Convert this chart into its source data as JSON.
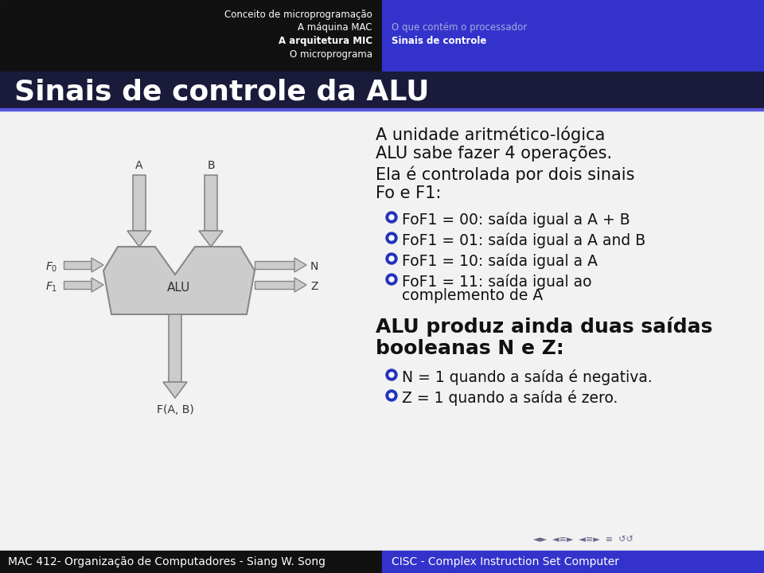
{
  "header_bg_left": "#111111",
  "header_bg_right": "#3333cc",
  "title_bar_bg": "#1a1a3a",
  "slide_bg": "#f2f2f2",
  "footer_bg_left": "#111111",
  "footer_bg_right": "#3333cc",
  "nav_items": [
    "Conceito de microprogramação",
    "A máquina MAC",
    "A arquitetura MIC",
    "O microprograma"
  ],
  "nav_bold": "A arquitetura MIC",
  "nav_right_items": [
    "O que contém o processador",
    "Sinais de controle"
  ],
  "nav_right_bold": "Sinais de controle",
  "slide_title": "Sinais de controle da ALU",
  "slide_title_color": "#ffffff",
  "slide_title_fontsize": 26,
  "main_text_lines": [
    "A unidade aritmético-lógica",
    "ALU sabe fazer 4 operações.",
    "Ela é controlada por dois sinais",
    "Fo e F1:"
  ],
  "main_text_color": "#111111",
  "main_text_fontsize": 15,
  "bullet_items": [
    "FoF1 = 00: saída igual a A + B",
    "FoF1 = 01: saída igual a A and B",
    "FoF1 = 10: saída igual a A",
    "FoF1 = 11: saída igual ao"
  ],
  "bullet_item4_cont": "complemento de A",
  "bullet_color": "#2233bb",
  "bullet_text_color": "#111111",
  "bullet_fontsize": 13.5,
  "section2_lines": [
    "ALU produz ainda duas saídas",
    "booleanas N e Z:"
  ],
  "section2_fontsize": 18,
  "bullet2_items": [
    "N = 1 quando a saída é negativa.",
    "Z = 1 quando a saída é zero."
  ],
  "bullet2_fontsize": 13.5,
  "footer_left": "MAC 412- Organização de Computadores - Siang W. Song",
  "footer_right": "CISC - Complex Instruction Set Computer",
  "footer_fontsize": 10,
  "arrow_color": "#999999",
  "diagram_color": "#cccccc",
  "diagram_edge_color": "#888888",
  "diagram_text_color": "#333333"
}
